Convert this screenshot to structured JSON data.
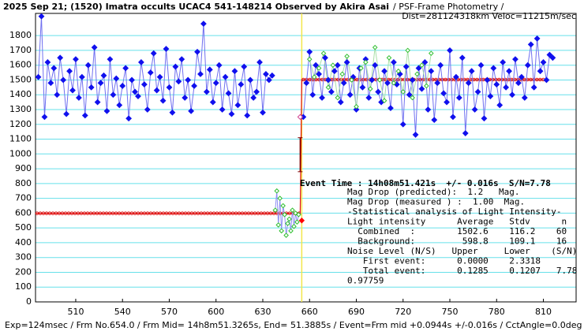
{
  "chart_data": {
    "type": "scatter",
    "title": "2025 Sep 21; (1520) Imatra occults UCAC4 541-148214 Observed by Akira Asai",
    "subtitle": "/ PSF-Frame Photometry /",
    "subtitle2": "Dist=281124318km Veloc=11215m/sec",
    "footer": "Exp=124msec / Frm No.654.0 / Frm Mid= 14h8m51.3265s, End= 51.3885s / Event=Frm mid +0.0944s +/-0.016s / CctAngle=0.0deg",
    "annotations": [
      "Event Time : 14h08m51.421s  +/- 0.016s  S/N=7.78",
      "Mag Drop (predicted):  1.2   Mag.",
      "Mag Drop (measured ) :  1.00  Mag.",
      "-Statistical analysis of Light Intensity-",
      "Light intensity      Average   Stdv      n",
      "  Combined  :        1502.6    116.2    60",
      "  Background:         598.8    109.1    16",
      "Noise Level (N/S)   Upper     Lower    (S/N)",
      "   First event:      0.0000    2.3318",
      "   Total event:      0.1285    0.1207   7.78",
      "0.97759"
    ],
    "xlim": [
      484.2,
      831
    ],
    "ylim": [
      0,
      1950
    ],
    "xticks": [
      510,
      540,
      570,
      600,
      630,
      660,
      690,
      720,
      750,
      780,
      810
    ],
    "yticks": [
      0,
      100,
      200,
      300,
      400,
      500,
      600,
      700,
      800,
      900,
      1000,
      1100,
      1200,
      1300,
      1400,
      1500,
      1600,
      1700,
      1800
    ],
    "grid": true,
    "grid_color": "#66e0ea",
    "event_x": 655,
    "event_color": "#f2e64a",
    "series": [
      {
        "color": "#1010ee",
        "line_color": "#7070f0",
        "marker": "filled",
        "x": [
          486,
          488,
          490,
          492,
          494,
          496,
          498,
          500,
          502,
          504,
          506,
          508,
          510,
          512,
          514,
          516,
          518,
          520,
          522,
          524,
          526,
          528,
          530,
          532,
          534,
          536,
          538,
          540,
          542,
          544,
          546,
          548,
          550,
          552,
          554,
          556,
          558,
          560,
          562,
          564,
          566,
          568,
          570,
          572,
          574,
          576,
          578,
          580,
          582,
          584,
          586,
          588,
          590,
          592,
          594,
          596,
          598,
          600,
          602,
          604,
          606,
          608,
          610,
          612,
          614,
          616,
          618,
          620,
          622,
          624,
          626,
          628,
          630,
          632,
          634,
          636
        ],
        "values": [
          1520,
          1930,
          1250,
          1620,
          1480,
          1580,
          1400,
          1650,
          1500,
          1270,
          1560,
          1430,
          1640,
          1380,
          1520,
          1260,
          1600,
          1450,
          1720,
          1350,
          1480,
          1530,
          1290,
          1640,
          1400,
          1510,
          1330,
          1460,
          1580,
          1240,
          1500,
          1420,
          1390,
          1620,
          1470,
          1300,
          1550,
          1680,
          1430,
          1520,
          1360,
          1710,
          1450,
          1280,
          1590,
          1490,
          1640,
          1380,
          1500,
          1290,
          1460,
          1690,
          1540,
          1880,
          1420,
          1570,
          1350,
          1480,
          1600,
          1300,
          1520,
          1410,
          1270,
          1560,
          1330,
          1470,
          1590,
          1260,
          1500,
          1380,
          1420,
          1620,
          1280,
          1540,
          1500,
          1530
        ]
      },
      {
        "color": "#2fbf2f",
        "line_color": "#9090f4",
        "marker": "open",
        "x": [
          638,
          639,
          640,
          641,
          642,
          643,
          644,
          645,
          646,
          647,
          648,
          649,
          650,
          651,
          652,
          653
        ],
        "values": [
          620,
          750,
          520,
          700,
          480,
          650,
          590,
          450,
          530,
          560,
          480,
          620,
          510,
          600,
          540,
          590
        ]
      },
      {
        "color": "#1010ee",
        "line_color": "#7070f0",
        "marker": "filled",
        "x": [
          656,
          658,
          660,
          662,
          664,
          666,
          668,
          670,
          672,
          674,
          676,
          678,
          680,
          682,
          684,
          686,
          688,
          690,
          692,
          694,
          696,
          698,
          700,
          702,
          704,
          706,
          708,
          710,
          712,
          714,
          716,
          718,
          720,
          722,
          724,
          726,
          728,
          730,
          732,
          734,
          736,
          738,
          740,
          742,
          744,
          746,
          748,
          750,
          752,
          754,
          756,
          758,
          760,
          762,
          764,
          766,
          768,
          770,
          772,
          774,
          776,
          778,
          780,
          782,
          784,
          786,
          788,
          790,
          792,
          794,
          796,
          798,
          800,
          802,
          804,
          806,
          808,
          810,
          812,
          814,
          816
        ],
        "values": [
          1250,
          1480,
          1690,
          1400,
          1600,
          1540,
          1380,
          1650,
          1500,
          1420,
          1560,
          1600,
          1350,
          1480,
          1620,
          1400,
          1520,
          1300,
          1580,
          1450,
          1640,
          1380,
          1500,
          1600,
          1420,
          1350,
          1560,
          1480,
          1310,
          1620,
          1470,
          1540,
          1200,
          1590,
          1400,
          1500,
          1130,
          1580,
          1440,
          1620,
          1300,
          1560,
          1230,
          1480,
          1600,
          1410,
          1350,
          1700,
          1250,
          1520,
          1380,
          1650,
          1140,
          1480,
          1560,
          1300,
          1420,
          1600,
          1240,
          1500,
          1390,
          1580,
          1470,
          1330,
          1620,
          1450,
          1560,
          1400,
          1640,
          1480,
          1520,
          1380,
          1600,
          1740,
          1450,
          1780,
          1560,
          1620,
          1500,
          1670,
          1650
        ]
      },
      {
        "color": "#2fbf2f",
        "line_color": "#a8e0a8",
        "marker": "open",
        "x": [
          660,
          663,
          666,
          669,
          672,
          675,
          678,
          681,
          684,
          687,
          690,
          693,
          696,
          699,
          702,
          705,
          708,
          711,
          714,
          717,
          720,
          723,
          726,
          729,
          732,
          735,
          738
        ],
        "values": [
          1640,
          1520,
          1580,
          1680,
          1450,
          1600,
          1380,
          1540,
          1660,
          1500,
          1320,
          1580,
          1620,
          1440,
          1720,
          1500,
          1360,
          1650,
          1480,
          1560,
          1420,
          1700,
          1380,
          1540,
          1600,
          1460,
          1680
        ]
      }
    ],
    "model": {
      "color": "#e01010",
      "x": [
        484.2,
        654,
        655,
        810
      ],
      "values": [
        598.8,
        598.8,
        1502.6,
        1502.6
      ]
    },
    "error_bar": {
      "color": "#800000",
      "x": 654,
      "value": 995,
      "error": 115
    },
    "event_points": [
      {
        "color": "#d04090",
        "x": 654,
        "value": 1250
      },
      {
        "color": "#ff0000",
        "x": 655,
        "value": 550
      }
    ]
  }
}
